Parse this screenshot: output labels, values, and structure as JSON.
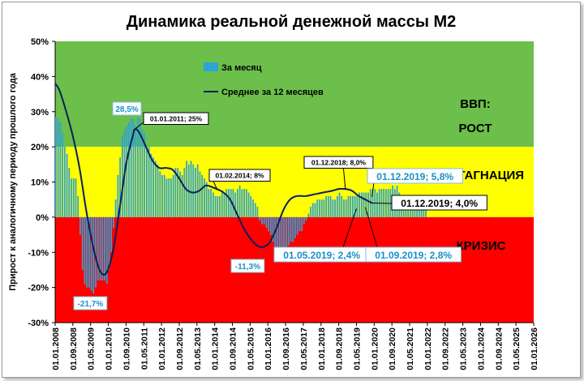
{
  "chart_data": {
    "type": "bar",
    "title": "Динамика реальной денежной массы М2",
    "ylabel": "Прирост к аналогичному периоду прошлого года",
    "ylim": [
      -30,
      50
    ],
    "yticks": [
      "50%",
      "40%",
      "30%",
      "20%",
      "10%",
      "0%",
      "-10%",
      "-20%",
      "-30%"
    ],
    "xlim": [
      "2008-01",
      "2026-01"
    ],
    "x_tick_labels": [
      "01.01.2008",
      "01.09.2008",
      "01.05.2009",
      "01.01.2010",
      "01.09.2010",
      "01.05.2011",
      "01.01.2012",
      "01.09.2012",
      "01.05.2013",
      "01.01.2014",
      "01.09.2014",
      "01.05.2015",
      "01.01.2016",
      "01.09.2016",
      "01.05.2017",
      "01.01.2018",
      "01.09.2018",
      "01.05.2019",
      "01.01.2020",
      "01.09.2020",
      "01.05.2021",
      "01.01.2022",
      "01.09.2022",
      "01.05.2023",
      "01.01.2024",
      "01.09.2024",
      "01.05.2025",
      "01.01.2026"
    ],
    "zones": [
      {
        "label": "ВВП:",
        "color": "#6cbf4a",
        "range": [
          20,
          50
        ]
      },
      {
        "label": "РОСТ",
        "color": "#6cbf4a",
        "range": [
          20,
          50
        ]
      },
      {
        "label": "СТАГНАЦИЯ",
        "color": "#ffff00",
        "range": [
          0,
          20
        ]
      },
      {
        "label": "КРИЗИС",
        "color": "#ff0000",
        "range": [
          -30,
          0
        ]
      }
    ],
    "series": [
      {
        "name": "За месяц",
        "kind": "bar",
        "color": "#2ea3d6",
        "start": "2008-01",
        "values": [
          28.5,
          28,
          27,
          24,
          20,
          18,
          14,
          11,
          11,
          11,
          6,
          -5,
          -15,
          -19,
          -20,
          -20,
          -21,
          -21.7,
          -20,
          -18,
          -18,
          -18,
          -18,
          -19,
          -15,
          -10,
          -3,
          5,
          12,
          17,
          23,
          25,
          26,
          27,
          28,
          28,
          26,
          28.5,
          28,
          25,
          24,
          20,
          20,
          18,
          17,
          16,
          15,
          13,
          12,
          12,
          11,
          11,
          11,
          12,
          14,
          14,
          13,
          12,
          14,
          16,
          15,
          16,
          15,
          14,
          15,
          13,
          12,
          11,
          10,
          8,
          8,
          7,
          6,
          6,
          6,
          7,
          7,
          8,
          8,
          8,
          8,
          7,
          8,
          9,
          8,
          8,
          8,
          7,
          6,
          5,
          4,
          3,
          -1,
          -2,
          -2,
          -3,
          -4,
          -5,
          -7,
          -9,
          -10,
          -11.3,
          -11,
          -10,
          -10,
          -8,
          -7,
          -7,
          -6,
          -5,
          -4,
          -4,
          -2,
          -1,
          1,
          3,
          4,
          4,
          5,
          5,
          5,
          5,
          6,
          6,
          6,
          5,
          5,
          6,
          7,
          6,
          5,
          5,
          6,
          6,
          6,
          6,
          6,
          7,
          7,
          7,
          7,
          7,
          8,
          8,
          8,
          7,
          8,
          8,
          8,
          8,
          8,
          8,
          9,
          8,
          9,
          7,
          5,
          4,
          3,
          3,
          2.4,
          2.5,
          3,
          3,
          2.8,
          4,
          4.5,
          5.8
        ]
      },
      {
        "name": "Среднее за 12 месяцев",
        "kind": "line",
        "color": "#0b1f5c",
        "points": [
          [
            "2008-01",
            38
          ],
          [
            "2008-03",
            36
          ],
          [
            "2008-06",
            30
          ],
          [
            "2008-09",
            23
          ],
          [
            "2008-12",
            14
          ],
          [
            "2009-03",
            2
          ],
          [
            "2009-06",
            -8
          ],
          [
            "2009-09",
            -15
          ],
          [
            "2009-12",
            -16
          ],
          [
            "2010-03",
            -10
          ],
          [
            "2010-06",
            2
          ],
          [
            "2010-09",
            15
          ],
          [
            "2010-12",
            23
          ],
          [
            "2011-01",
            25
          ],
          [
            "2011-03",
            24
          ],
          [
            "2011-06",
            20
          ],
          [
            "2011-09",
            16
          ],
          [
            "2011-12",
            14
          ],
          [
            "2012-03",
            14
          ],
          [
            "2012-06",
            13.5
          ],
          [
            "2012-09",
            11
          ],
          [
            "2012-12",
            8
          ],
          [
            "2013-03",
            7
          ],
          [
            "2013-06",
            7.5
          ],
          [
            "2013-09",
            9
          ],
          [
            "2013-12",
            8.5
          ],
          [
            "2014-02",
            8
          ],
          [
            "2014-05",
            7
          ],
          [
            "2014-08",
            5
          ],
          [
            "2014-11",
            1
          ],
          [
            "2015-02",
            -3
          ],
          [
            "2015-05",
            -6
          ],
          [
            "2015-08",
            -8
          ],
          [
            "2015-11",
            -8.5
          ],
          [
            "2016-02",
            -7
          ],
          [
            "2016-05",
            -3
          ],
          [
            "2016-08",
            2
          ],
          [
            "2016-11",
            5
          ],
          [
            "2017-02",
            6
          ],
          [
            "2017-06",
            6
          ],
          [
            "2017-10",
            6.5
          ],
          [
            "2018-02",
            7
          ],
          [
            "2018-06",
            7.5
          ],
          [
            "2018-09",
            8
          ],
          [
            "2018-12",
            8
          ],
          [
            "2019-03",
            7.5
          ],
          [
            "2019-06",
            6
          ],
          [
            "2019-09",
            5
          ],
          [
            "2019-12",
            4
          ]
        ]
      }
    ],
    "annotations": [
      {
        "text": "28,5%",
        "date": "2010-02",
        "value": 28.5,
        "style": "boxed-cyan"
      },
      {
        "text": "01.01.2011; 25%",
        "date": "2011-01",
        "value": 25,
        "style": "boxed"
      },
      {
        "text": "01.02.2014; 8%",
        "date": "2014-02",
        "value": 8,
        "style": "boxed"
      },
      {
        "text": "01.12.2018; 8,0%",
        "date": "2018-12",
        "value": 8,
        "style": "boxed"
      },
      {
        "text": "01.12.2019; 5,8%",
        "date": "2019-12",
        "value": 5.8,
        "style": "boxed-cyan-large"
      },
      {
        "text": "01.12.2019; 4,0%",
        "date": "2019-12",
        "value": 4,
        "style": "boxed-large"
      },
      {
        "text": "01.05.2019; 2,4%",
        "date": "2019-05",
        "value": 2.4,
        "style": "boxed-cyan-large"
      },
      {
        "text": "01.09.2019; 2,8%",
        "date": "2019-09",
        "value": 2.8,
        "style": "boxed-cyan-large"
      },
      {
        "text": "-21,7%",
        "date": "2009-06",
        "value": -21.7,
        "style": "boxed-cyan"
      },
      {
        "text": "-11,3%",
        "date": "2015-05",
        "value": -11.3,
        "style": "boxed-cyan"
      }
    ],
    "legend": "top-left",
    "grid": false
  }
}
